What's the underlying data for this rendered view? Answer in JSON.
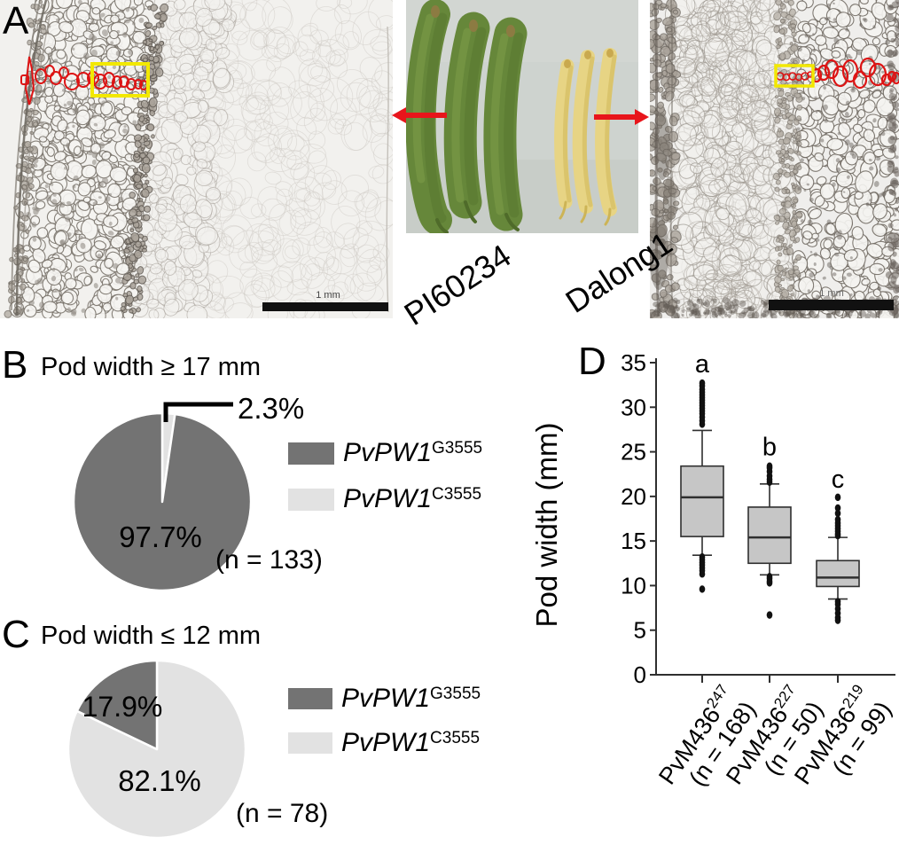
{
  "panels": {
    "a": {
      "label": "A",
      "photo_left_label": "PI60234",
      "photo_right_label": "Dalong1",
      "scale_bar_left": "1 mm",
      "scale_bar_right": "1 mm"
    },
    "b": {
      "label": "B",
      "title": "Pod width ≥ 17 mm",
      "pct_major": "97.7%",
      "pct_minor": "2.3%",
      "n": "(n = 133)",
      "legend": [
        {
          "gene": "PvPW1",
          "allele": "G3555",
          "color": "#737373"
        },
        {
          "gene": "PvPW1",
          "allele": "C3555",
          "color": "#e2e2e2"
        }
      ]
    },
    "c": {
      "label": "C",
      "title": "Pod width ≤ 12 mm",
      "pct_major": "82.1%",
      "pct_minor": "17.9%",
      "n": "(n = 78)",
      "legend": [
        {
          "gene": "PvPW1",
          "allele": "G3555",
          "color": "#737373"
        },
        {
          "gene": "PvPW1",
          "allele": "C3555",
          "color": "#e2e2e2"
        }
      ]
    },
    "d": {
      "label": "D",
      "ylabel": "Pod width (mm)"
    }
  },
  "chart_data": [
    {
      "type": "pie",
      "title": "Pod width ≥ 17 mm",
      "n_label": "(n = 133)",
      "start": "12-oclock",
      "direction": "clockwise",
      "slices": [
        {
          "name": "PvPW1 C3555",
          "value": 2.3,
          "pct_label": "2.3%",
          "color": "#e2e2e2"
        },
        {
          "name": "PvPW1 G3555",
          "value": 97.7,
          "pct_label": "97.7%",
          "color": "#737373"
        }
      ]
    },
    {
      "type": "pie",
      "title": "Pod width ≤ 12 mm",
      "n_label": "(n = 78)",
      "start": "12-oclock",
      "direction": "clockwise",
      "slices": [
        {
          "name": "PvPW1 C3555",
          "value": 82.1,
          "pct_label": "82.1%",
          "color": "#e2e2e2"
        },
        {
          "name": "PvPW1 G3555",
          "value": 17.9,
          "pct_label": "17.9%",
          "color": "#737373"
        }
      ]
    },
    {
      "type": "box",
      "ylabel": "Pod width (mm)",
      "ylim": [
        0,
        35
      ],
      "yticks": [
        0,
        5,
        10,
        15,
        20,
        25,
        30,
        35
      ],
      "box_fill": "#c6c6c6",
      "categories": [
        {
          "name": "PvM436",
          "sup": "247",
          "n_label": "(n = 168)",
          "letter": "a",
          "letter_y": 33.9,
          "whisker_low": 13.4,
          "q1": 15.5,
          "median": 19.9,
          "q3": 23.4,
          "whisker_high": 27.4,
          "outliers_high": [
            28.1,
            28.5,
            28.9,
            29.3,
            29.6,
            29.9,
            30.2,
            30.5,
            30.8,
            31.1,
            31.4,
            31.7,
            32.0,
            32.4,
            32.7
          ],
          "outliers_low": [
            13.2,
            12.9,
            12.6,
            12.3,
            12.0,
            11.7,
            11.3,
            9.6
          ]
        },
        {
          "name": "PvM436",
          "sup": "227",
          "n_label": "(n = 50)",
          "letter": "b",
          "letter_y": 24.6,
          "whisker_low": 11.2,
          "q1": 12.5,
          "median": 15.4,
          "q3": 18.8,
          "whisker_high": 21.4,
          "outliers_high": [
            21.6,
            21.9,
            22.3,
            22.8,
            23.2,
            23.4
          ],
          "outliers_low": [
            11.0,
            10.8,
            10.5,
            10.3,
            6.7
          ]
        },
        {
          "name": "PvM436",
          "sup": "219",
          "n_label": "(n = 99)",
          "letter": "c",
          "letter_y": 21.0,
          "whisker_low": 8.5,
          "q1": 9.9,
          "median": 10.9,
          "q3": 12.8,
          "whisker_high": 15.4,
          "outliers_high": [
            15.6,
            15.8,
            16.1,
            16.4,
            16.7,
            17.0,
            17.4,
            18.1,
            18.7,
            19.9
          ],
          "outliers_low": [
            8.2,
            7.9,
            7.4,
            6.9,
            6.4,
            6.1
          ]
        }
      ]
    }
  ]
}
